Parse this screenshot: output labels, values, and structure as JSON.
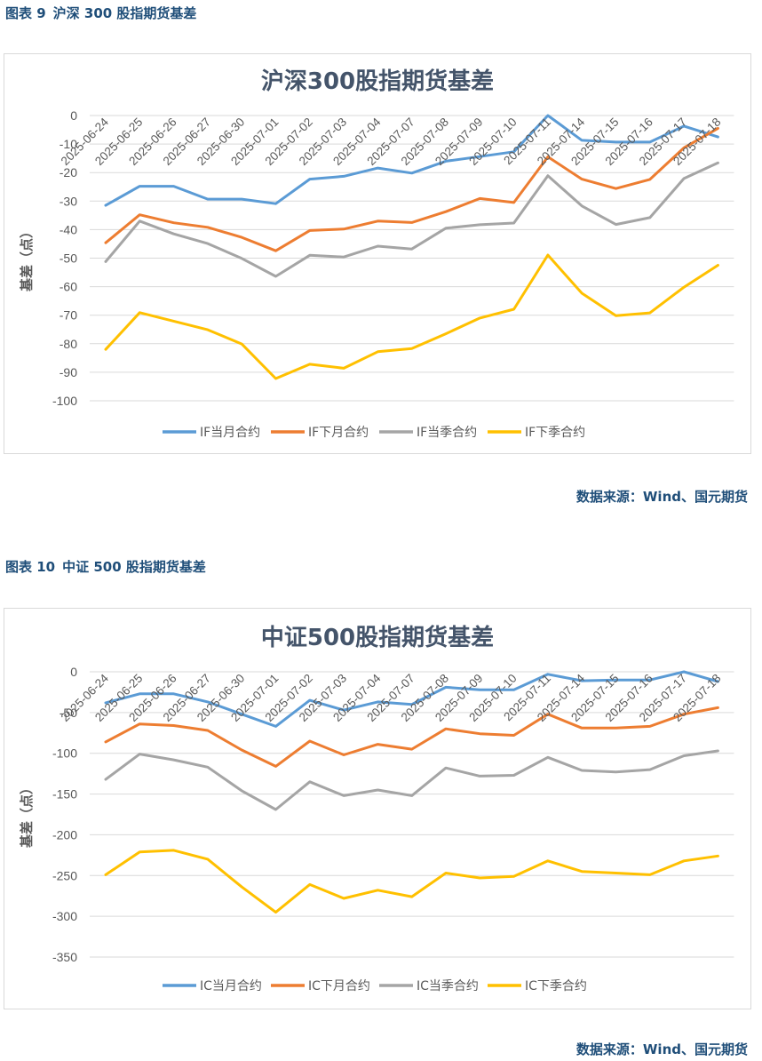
{
  "figures": [
    {
      "caption": {
        "label": "图表 9",
        "title": "沪深 300 股指期货基差"
      },
      "source": "数据来源：Wind、国元期货"
    },
    {
      "caption": {
        "label": "图表 10",
        "title": "中证 500 股指期货基差"
      },
      "source": "数据来源：Wind、国元期货"
    }
  ],
  "colors": {
    "caption": "#1f4e79",
    "title": "#44546a",
    "axis_text": "#595959",
    "grid": "#d9d9d9"
  },
  "chart_data": [
    {
      "type": "line",
      "title": "沪深300股指期货基差",
      "ylabel": "基差（点）",
      "xlabel": "",
      "ylim": [
        -100,
        0
      ],
      "yticks": [
        0,
        -10,
        -20,
        -30,
        -40,
        -50,
        -60,
        -70,
        -80,
        -90,
        -100
      ],
      "grid": true,
      "legend_position": "bottom",
      "categories": [
        "2025-06-24",
        "2025-06-25",
        "2025-06-26",
        "2025-06-27",
        "2025-06-30",
        "2025-07-01",
        "2025-07-02",
        "2025-07-03",
        "2025-07-04",
        "2025-07-07",
        "2025-07-08",
        "2025-07-09",
        "2025-07-10",
        "2025-07-11",
        "2025-07-14",
        "2025-07-15",
        "2025-07-16",
        "2025-07-17",
        "2025-07-18"
      ],
      "series": [
        {
          "name": "IF当月合约",
          "color": "#5b9bd5",
          "values": [
            -31.5,
            -24.8,
            -24.8,
            -29.3,
            -29.3,
            -30.9,
            -22.3,
            -21.3,
            -18.4,
            -20.2,
            -16.0,
            -14.4,
            -12.7,
            0.0,
            -8.7,
            -9.3,
            -9.3,
            -3.7,
            -7.5
          ]
        },
        {
          "name": "IF下月合约",
          "color": "#ed7d31",
          "values": [
            -44.6,
            -34.8,
            -37.6,
            -39.2,
            -42.7,
            -47.4,
            -40.3,
            -39.8,
            -37.0,
            -37.5,
            -33.7,
            -29.1,
            -30.5,
            -14.5,
            -22.3,
            -25.6,
            -22.4,
            -11.3,
            -4.5
          ]
        },
        {
          "name": "IF当季合约",
          "color": "#a5a5a5",
          "values": [
            -51.2,
            -37.0,
            -41.5,
            -44.9,
            -50.1,
            -56.4,
            -49.0,
            -49.6,
            -45.8,
            -46.8,
            -39.5,
            -38.3,
            -37.7,
            -21.1,
            -31.7,
            -38.2,
            -35.8,
            -22.1,
            -16.6
          ]
        },
        {
          "name": "IF下季合约",
          "color": "#ffc000",
          "values": [
            -82.0,
            -69.1,
            -72.1,
            -75.1,
            -80.1,
            -92.2,
            -87.2,
            -88.6,
            -82.8,
            -81.7,
            -76.5,
            -71.0,
            -67.9,
            -48.9,
            -62.3,
            -70.2,
            -69.2,
            -60.2,
            -52.5
          ]
        }
      ]
    },
    {
      "type": "line",
      "title": "中证500股指期货基差",
      "ylabel": "基差（点）",
      "xlabel": "",
      "ylim": [
        -350,
        0
      ],
      "yticks": [
        0,
        -50,
        -100,
        -150,
        -200,
        -250,
        -300,
        -350
      ],
      "grid": true,
      "legend_position": "bottom",
      "categories": [
        "2025-06-24",
        "2025-06-25",
        "2025-06-26",
        "2025-06-27",
        "2025-06-30",
        "2025-07-01",
        "2025-07-02",
        "2025-07-03",
        "2025-07-04",
        "2025-07-07",
        "2025-07-08",
        "2025-07-09",
        "2025-07-10",
        "2025-07-11",
        "2025-07-14",
        "2025-07-15",
        "2025-07-16",
        "2025-07-17",
        "2025-07-18"
      ],
      "series": [
        {
          "name": "IC当月合约",
          "color": "#5b9bd5",
          "values": [
            -38,
            -27,
            -27,
            -37,
            -52,
            -67,
            -35,
            -47,
            -37,
            -40,
            -19,
            -22,
            -22,
            -3,
            -11,
            -10,
            -10,
            0,
            -12
          ]
        },
        {
          "name": "IC下月合约",
          "color": "#ed7d31",
          "values": [
            -86,
            -64,
            -66,
            -72,
            -96,
            -116,
            -85,
            -102,
            -89,
            -95,
            -70,
            -76,
            -78,
            -52,
            -69,
            -69,
            -67,
            -52,
            -44
          ]
        },
        {
          "name": "IC当季合约",
          "color": "#a5a5a5",
          "values": [
            -132,
            -101,
            -108,
            -117,
            -146,
            -169,
            -135,
            -152,
            -145,
            -152,
            -118,
            -128,
            -127,
            -105,
            -121,
            -123,
            -120,
            -103,
            -97
          ]
        },
        {
          "name": "IC下季合约",
          "color": "#ffc000",
          "values": [
            -249,
            -221,
            -219,
            -230,
            -264,
            -295,
            -261,
            -278,
            -268,
            -276,
            -247,
            -253,
            -251,
            -232,
            -245,
            -247,
            -249,
            -232,
            -226
          ]
        }
      ]
    }
  ]
}
